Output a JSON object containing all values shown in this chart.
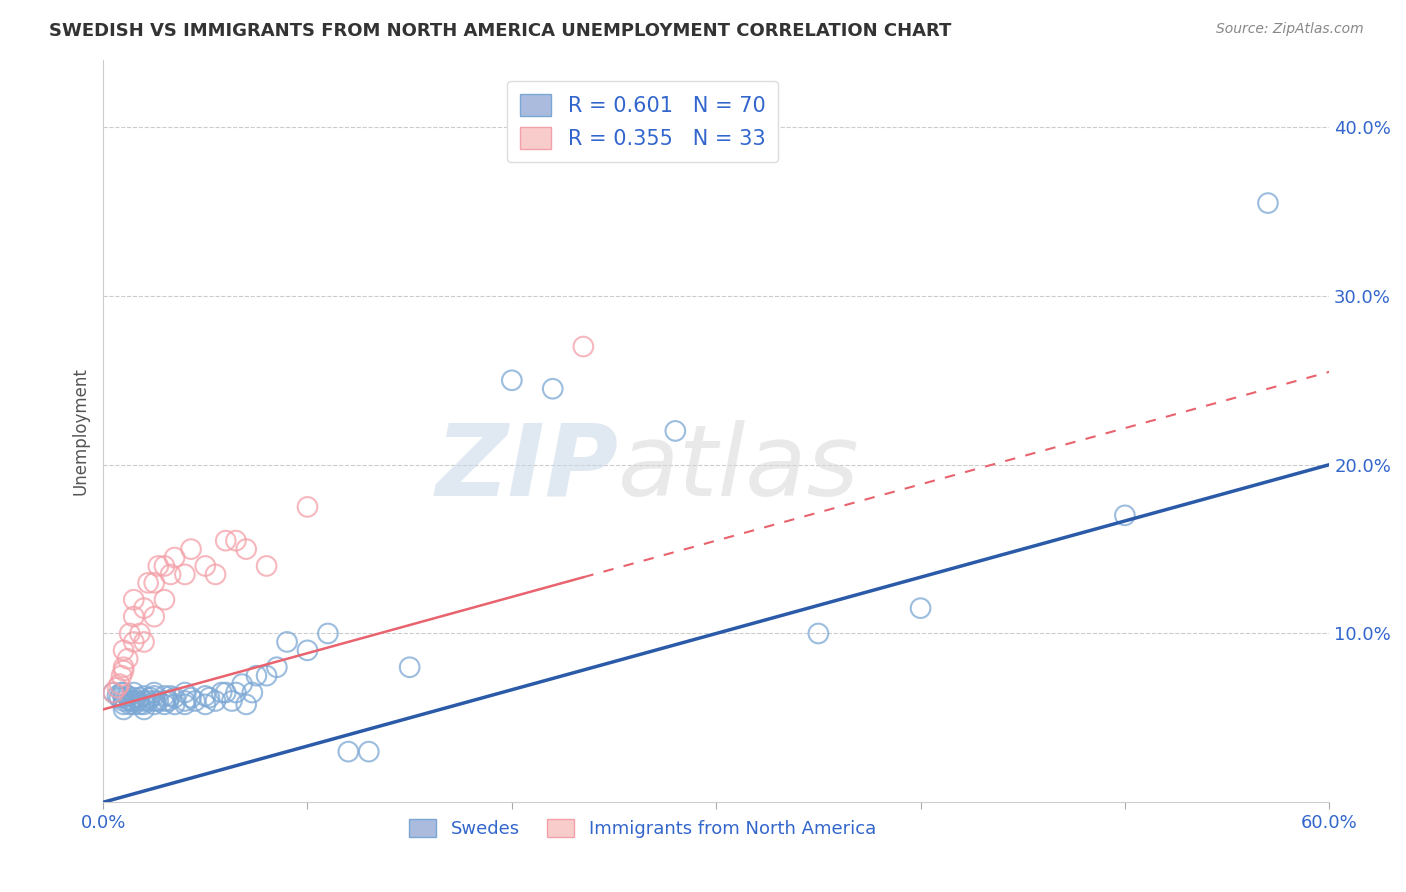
{
  "title": "SWEDISH VS IMMIGRANTS FROM NORTH AMERICA UNEMPLOYMENT CORRELATION CHART",
  "source": "Source: ZipAtlas.com",
  "xlabel": "",
  "ylabel": "Unemployment",
  "xlim": [
    0.0,
    0.6
  ],
  "ylim": [
    0.0,
    0.44
  ],
  "xticks": [
    0.0,
    0.1,
    0.2,
    0.3,
    0.4,
    0.5,
    0.6
  ],
  "yticks": [
    0.1,
    0.2,
    0.3,
    0.4
  ],
  "ytick_labels": [
    "10.0%",
    "20.0%",
    "30.0%",
    "40.0%"
  ],
  "xtick_labels": [
    "0.0%",
    "",
    "",
    "",
    "",
    "",
    "60.0%"
  ],
  "blue_color": "#7BA7D4",
  "pink_color": "#F4A0A8",
  "blue_line_color": "#2B5BA8",
  "pink_line_color": "#E8636E",
  "legend_text_color": "#3366CC",
  "blue_R": 0.601,
  "blue_N": 70,
  "pink_R": 0.355,
  "pink_N": 33,
  "watermark_zip": "ZIP",
  "watermark_atlas": "atlas",
  "background_color": "#FFFFFF",
  "blue_line_x0": 0.0,
  "blue_line_y0": 0.0,
  "blue_line_x1": 0.6,
  "blue_line_y1": 0.2,
  "pink_line_x0": 0.0,
  "pink_line_y0": 0.055,
  "pink_line_x1": 0.6,
  "pink_line_y1": 0.255,
  "swedes_x": [
    0.005,
    0.007,
    0.008,
    0.009,
    0.01,
    0.01,
    0.01,
    0.01,
    0.01,
    0.012,
    0.013,
    0.013,
    0.014,
    0.015,
    0.015,
    0.015,
    0.015,
    0.017,
    0.018,
    0.018,
    0.02,
    0.02,
    0.02,
    0.02,
    0.022,
    0.023,
    0.025,
    0.025,
    0.025,
    0.025,
    0.027,
    0.03,
    0.03,
    0.03,
    0.032,
    0.033,
    0.035,
    0.035,
    0.04,
    0.04,
    0.04,
    0.043,
    0.045,
    0.05,
    0.05,
    0.052,
    0.055,
    0.058,
    0.06,
    0.063,
    0.065,
    0.068,
    0.07,
    0.073,
    0.075,
    0.08,
    0.085,
    0.09,
    0.1,
    0.11,
    0.12,
    0.13,
    0.15,
    0.2,
    0.22,
    0.28,
    0.35,
    0.4,
    0.5,
    0.57
  ],
  "swedes_y": [
    0.065,
    0.063,
    0.062,
    0.065,
    0.065,
    0.062,
    0.06,
    0.058,
    0.055,
    0.063,
    0.06,
    0.058,
    0.06,
    0.062,
    0.06,
    0.058,
    0.065,
    0.06,
    0.058,
    0.062,
    0.063,
    0.06,
    0.058,
    0.055,
    0.06,
    0.062,
    0.063,
    0.06,
    0.058,
    0.065,
    0.06,
    0.058,
    0.063,
    0.06,
    0.06,
    0.063,
    0.062,
    0.058,
    0.06,
    0.058,
    0.065,
    0.062,
    0.06,
    0.058,
    0.063,
    0.062,
    0.06,
    0.065,
    0.065,
    0.06,
    0.065,
    0.07,
    0.058,
    0.065,
    0.075,
    0.075,
    0.08,
    0.095,
    0.09,
    0.1,
    0.03,
    0.03,
    0.08,
    0.25,
    0.245,
    0.22,
    0.1,
    0.115,
    0.17,
    0.355
  ],
  "immigrants_x": [
    0.005,
    0.007,
    0.008,
    0.009,
    0.01,
    0.01,
    0.01,
    0.012,
    0.013,
    0.015,
    0.015,
    0.015,
    0.018,
    0.02,
    0.02,
    0.022,
    0.025,
    0.025,
    0.027,
    0.03,
    0.03,
    0.033,
    0.035,
    0.04,
    0.043,
    0.05,
    0.055,
    0.06,
    0.065,
    0.07,
    0.08,
    0.1,
    0.235
  ],
  "immigrants_y": [
    0.065,
    0.068,
    0.07,
    0.075,
    0.078,
    0.08,
    0.09,
    0.085,
    0.1,
    0.095,
    0.11,
    0.12,
    0.1,
    0.095,
    0.115,
    0.13,
    0.11,
    0.13,
    0.14,
    0.12,
    0.14,
    0.135,
    0.145,
    0.135,
    0.15,
    0.14,
    0.135,
    0.155,
    0.155,
    0.15,
    0.14,
    0.175,
    0.27
  ]
}
